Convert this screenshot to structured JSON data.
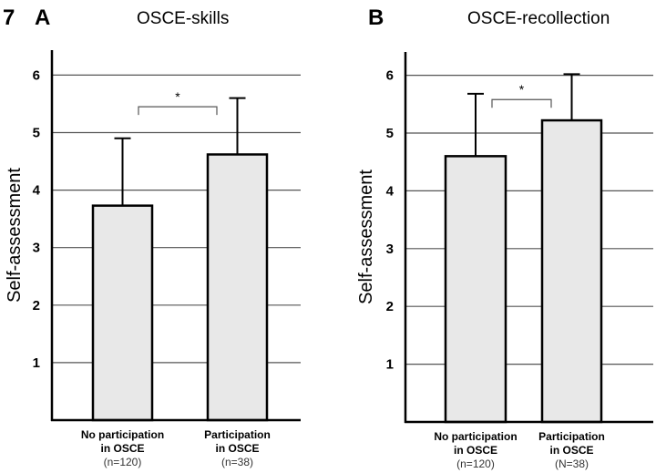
{
  "figure_number": "7",
  "chart_data": [
    {
      "type": "bar",
      "panel": "A",
      "title": "OSCE-skills",
      "xlabel": "",
      "ylabel": "Self-assessment",
      "ylim": [
        0,
        6.4
      ],
      "yticks": [
        1,
        2,
        3,
        4,
        5,
        6
      ],
      "grid": true,
      "categories": [
        {
          "line1": "No participation",
          "line2": "in OSCE",
          "n": "(n=120)"
        },
        {
          "line1": "Participation",
          "line2": "in OSCE",
          "n": "(n=38)"
        }
      ],
      "values": [
        3.73,
        4.62
      ],
      "error_upper": [
        4.9,
        5.6
      ],
      "significance": {
        "between": [
          0,
          1
        ],
        "label": "*",
        "level": 5.45
      },
      "bar_color": "#e8e8e8"
    },
    {
      "type": "bar",
      "panel": "B",
      "title": "OSCE-recollection",
      "xlabel": "",
      "ylabel": "Self-assessment",
      "ylim": [
        0,
        6.4
      ],
      "yticks": [
        1,
        2,
        3,
        4,
        5,
        6
      ],
      "grid": true,
      "categories": [
        {
          "line1": "No participation",
          "line2": "in OSCE",
          "n": "(n=120)"
        },
        {
          "line1": "Participation",
          "line2": "in OSCE",
          "n": "(N=38)"
        }
      ],
      "values": [
        4.6,
        5.22
      ],
      "error_upper": [
        5.68,
        6.02
      ],
      "significance": {
        "between": [
          0,
          1
        ],
        "label": "*",
        "level": 5.58
      },
      "bar_color": "#e8e8e8"
    }
  ]
}
